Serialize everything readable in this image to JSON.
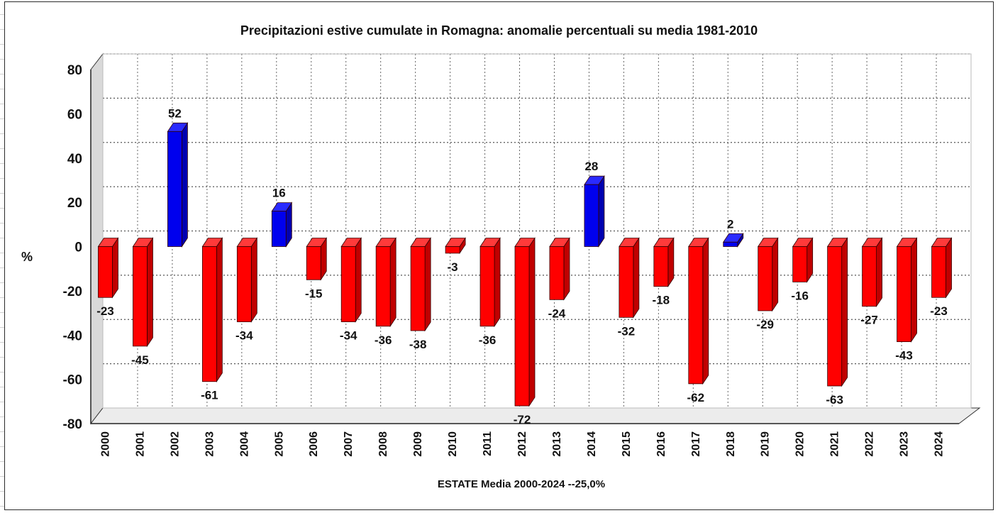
{
  "chart_data": {
    "type": "bar",
    "title": "Precipitazioni estive cumulate in Romagna: anomalie percentuali su media 1981-2010",
    "ylabel": "%",
    "xlabel": "ESTATE  Media 2000-2024 --25,0%",
    "ylim": [
      -80,
      80
    ],
    "yticks": [
      80,
      60,
      40,
      20,
      0,
      -20,
      -40,
      -60,
      -80
    ],
    "grid": true,
    "categories": [
      "2000",
      "2001",
      "2002",
      "2003",
      "2004",
      "2005",
      "2006",
      "2007",
      "2008",
      "2009",
      "2010",
      "2011",
      "2012",
      "2013",
      "2014",
      "2015",
      "2016",
      "2017",
      "2018",
      "2019",
      "2020",
      "2021",
      "2022",
      "2023",
      "2024"
    ],
    "values": [
      -23,
      -45,
      52,
      -61,
      -34,
      16,
      -15,
      -34,
      -36,
      -38,
      -3,
      -36,
      -72,
      -24,
      28,
      -32,
      -18,
      -62,
      2,
      -29,
      -16,
      -63,
      -27,
      -43,
      -23
    ],
    "colors": {
      "positive": "#0000ee",
      "negative": "#ff0000",
      "positive_side": "#0000b0",
      "negative_side": "#c00000",
      "positive_top": "#2a2aff",
      "negative_top": "#ff3a3a"
    }
  }
}
